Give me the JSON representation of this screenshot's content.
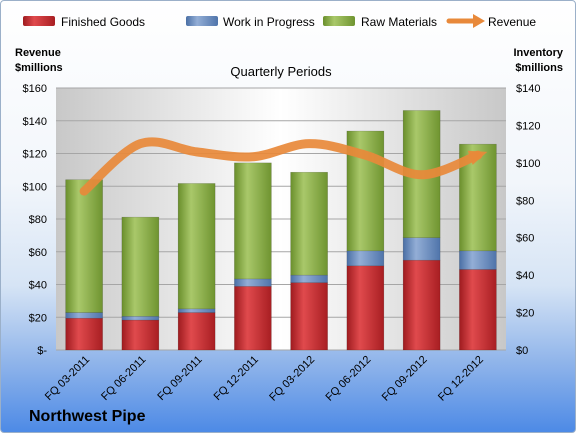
{
  "chart_data": {
    "type": "bar",
    "subtitle": "Quarterly Periods",
    "brand": "Northwest Pipe",
    "left_axis": {
      "label_line1": "Revenue",
      "label_line2": "$millions",
      "range": [
        0,
        160
      ],
      "ticks": [
        "$-",
        "$20",
        "$40",
        "$60",
        "$80",
        "$100",
        "$120",
        "$140",
        "$160"
      ]
    },
    "right_axis": {
      "label_line1": "Inventory",
      "label_line2": "$millions",
      "range": [
        0,
        140
      ],
      "ticks": [
        "$0",
        "$20",
        "$40",
        "$60",
        "$80",
        "$100",
        "$120",
        "$140"
      ]
    },
    "categories": [
      "FQ 03-2011",
      "FQ 06-2011",
      "FQ 09-2011",
      "FQ 12-2011",
      "FQ 03-2012",
      "FQ 06-2012",
      "FQ 09-2012",
      "FQ 12-2012"
    ],
    "stacked_series_axis": "right",
    "series": [
      {
        "name": "Finished Goods",
        "color": "#c0282b",
        "values": [
          17,
          16,
          20,
          34,
          36,
          45,
          48,
          43
        ]
      },
      {
        "name": "Work in Progress",
        "color": "#5a7fb8",
        "values": [
          3,
          2,
          2,
          4,
          4,
          8,
          12,
          10
        ]
      },
      {
        "name": "Raw Materials",
        "color": "#7fa33b",
        "values": [
          71,
          53,
          67,
          62,
          55,
          64,
          68,
          57
        ]
      }
    ],
    "line_series": {
      "name": "Revenue",
      "color": "#e8893a",
      "axis": "left",
      "values": [
        97,
        126,
        121,
        118,
        126,
        119,
        107,
        119
      ]
    },
    "grid": true,
    "legend_position": "top"
  }
}
